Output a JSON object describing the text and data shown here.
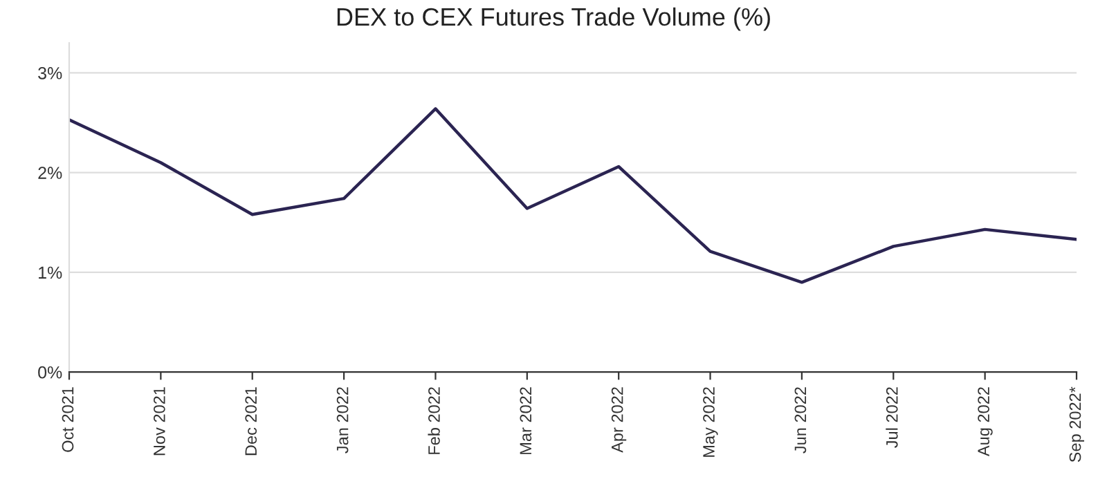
{
  "chart_data": {
    "type": "line",
    "title": "DEX to CEX Futures Trade Volume (%)",
    "categories": [
      "Oct 2021",
      "Nov 2021",
      "Dec 2021",
      "Jan 2022",
      "Feb 2022",
      "Mar 2022",
      "Apr 2022",
      "May 2022",
      "Jun 2022",
      "Jul 2022",
      "Aug 2022",
      "Sep 2022*"
    ],
    "series": [
      {
        "color": "#2b2452",
        "values": [
          2.53,
          2.1,
          1.58,
          1.74,
          2.64,
          1.64,
          2.06,
          1.21,
          0.9,
          1.26,
          1.43,
          1.33
        ]
      }
    ],
    "ylim": [
      0,
      3.3
    ],
    "yticks": [
      {
        "value": 0,
        "label": "0%"
      },
      {
        "value": 1,
        "label": "1%"
      },
      {
        "value": 2,
        "label": "2%"
      },
      {
        "value": 3,
        "label": "3%"
      }
    ],
    "grid": "y",
    "marker": "none",
    "line_style": "solid"
  }
}
